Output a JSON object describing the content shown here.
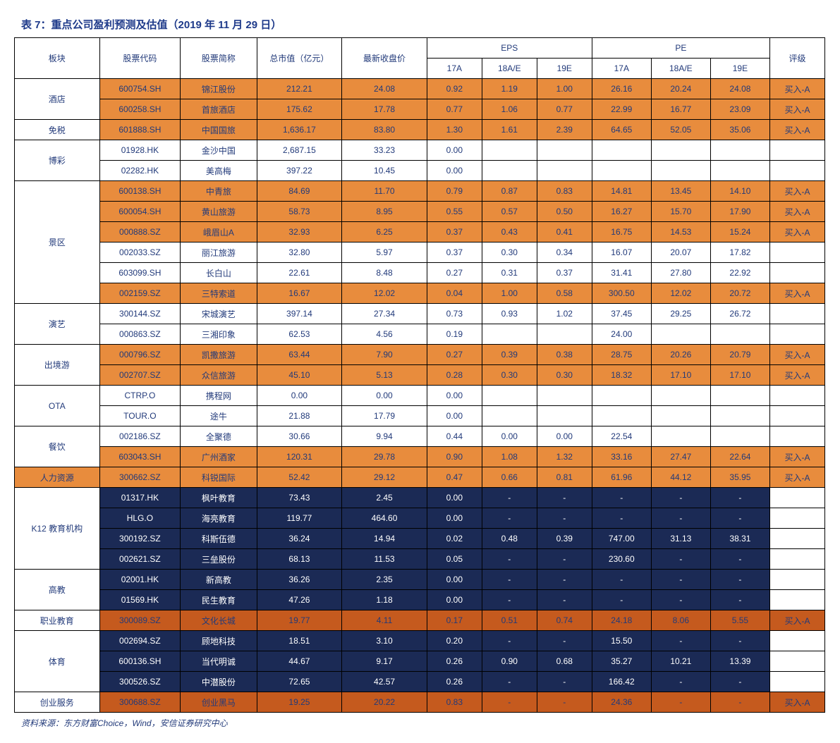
{
  "title": "表 7：重点公司盈利预测及估值（2019 年 11 月 29 日）",
  "footer": "资料来源：东方财富Choice，Wind，安信证券研究中心",
  "headers": {
    "sector": "板块",
    "code": "股票代码",
    "name": "股票简称",
    "mcap": "总市值（亿元）",
    "price": "最新收盘价",
    "eps": "EPS",
    "pe": "PE",
    "rating": "评级",
    "y17a": "17A",
    "y18ae": "18A/E",
    "y19e": "19E"
  },
  "ratings": {
    "buy": "买入-A"
  },
  "sectors": {
    "hotel": "酒店",
    "dutyfree": "免税",
    "gaming": "博彩",
    "scenic": "景区",
    "perf": "演艺",
    "outbound": "出境游",
    "ota": "OTA",
    "catering": "餐饮",
    "hr": "人力资源",
    "k12": "K12 教育机构",
    "higher": "高教",
    "voc": "职业教育",
    "sport": "体育",
    "startup": "创业服务"
  },
  "rows": {
    "r1": {
      "code": "600754.SH",
      "name": "锦江股份",
      "mcap": "212.21",
      "price": "24.08",
      "e17": "0.92",
      "e18": "1.19",
      "e19": "1.00",
      "p17": "26.16",
      "p18": "20.24",
      "p19": "24.08",
      "rating": "买入-A"
    },
    "r2": {
      "code": "600258.SH",
      "name": "首旅酒店",
      "mcap": "175.62",
      "price": "17.78",
      "e17": "0.77",
      "e18": "1.06",
      "e19": "0.77",
      "p17": "22.99",
      "p18": "16.77",
      "p19": "23.09",
      "rating": "买入-A"
    },
    "r3": {
      "code": "601888.SH",
      "name": "中国国旅",
      "mcap": "1,636.17",
      "price": "83.80",
      "e17": "1.30",
      "e18": "1.61",
      "e19": "2.39",
      "p17": "64.65",
      "p18": "52.05",
      "p19": "35.06",
      "rating": "买入-A"
    },
    "r4": {
      "code": "01928.HK",
      "name": "金沙中国",
      "mcap": "2,687.15",
      "price": "33.23",
      "e17": "0.00",
      "e18": "",
      "e19": "",
      "p17": "",
      "p18": "",
      "p19": "",
      "rating": ""
    },
    "r5": {
      "code": "02282.HK",
      "name": "美高梅",
      "mcap": "397.22",
      "price": "10.45",
      "e17": "0.00",
      "e18": "",
      "e19": "",
      "p17": "",
      "p18": "",
      "p19": "",
      "rating": ""
    },
    "r6": {
      "code": "600138.SH",
      "name": "中青旅",
      "mcap": "84.69",
      "price": "11.70",
      "e17": "0.79",
      "e18": "0.87",
      "e19": "0.83",
      "p17": "14.81",
      "p18": "13.45",
      "p19": "14.10",
      "rating": "买入-A"
    },
    "r7": {
      "code": "600054.SH",
      "name": "黄山旅游",
      "mcap": "58.73",
      "price": "8.95",
      "e17": "0.55",
      "e18": "0.57",
      "e19": "0.50",
      "p17": "16.27",
      "p18": "15.70",
      "p19": "17.90",
      "rating": "买入-A"
    },
    "r8": {
      "code": "000888.SZ",
      "name": "峨眉山A",
      "mcap": "32.93",
      "price": "6.25",
      "e17": "0.37",
      "e18": "0.43",
      "e19": "0.41",
      "p17": "16.75",
      "p18": "14.53",
      "p19": "15.24",
      "rating": "买入-A"
    },
    "r9": {
      "code": "002033.SZ",
      "name": "丽江旅游",
      "mcap": "32.80",
      "price": "5.97",
      "e17": "0.37",
      "e18": "0.30",
      "e19": "0.34",
      "p17": "16.07",
      "p18": "20.07",
      "p19": "17.82",
      "rating": ""
    },
    "r10": {
      "code": "603099.SH",
      "name": "长白山",
      "mcap": "22.61",
      "price": "8.48",
      "e17": "0.27",
      "e18": "0.31",
      "e19": "0.37",
      "p17": "31.41",
      "p18": "27.80",
      "p19": "22.92",
      "rating": ""
    },
    "r11": {
      "code": "002159.SZ",
      "name": "三特索道",
      "mcap": "16.67",
      "price": "12.02",
      "e17": "0.04",
      "e18": "1.00",
      "e19": "0.58",
      "p17": "300.50",
      "p18": "12.02",
      "p19": "20.72",
      "rating": "买入-A"
    },
    "r12": {
      "code": "300144.SZ",
      "name": "宋城演艺",
      "mcap": "397.14",
      "price": "27.34",
      "e17": "0.73",
      "e18": "0.93",
      "e19": "1.02",
      "p17": "37.45",
      "p18": "29.25",
      "p19": "26.72",
      "rating": ""
    },
    "r13": {
      "code": "000863.SZ",
      "name": "三湘印象",
      "mcap": "62.53",
      "price": "4.56",
      "e17": "0.19",
      "e18": "",
      "e19": "",
      "p17": "24.00",
      "p18": "",
      "p19": "",
      "rating": ""
    },
    "r14": {
      "code": "000796.SZ",
      "name": "凯撒旅游",
      "mcap": "63.44",
      "price": "7.90",
      "e17": "0.27",
      "e18": "0.39",
      "e19": "0.38",
      "p17": "28.75",
      "p18": "20.26",
      "p19": "20.79",
      "rating": "买入-A"
    },
    "r15": {
      "code": "002707.SZ",
      "name": "众信旅游",
      "mcap": "45.10",
      "price": "5.13",
      "e17": "0.28",
      "e18": "0.30",
      "e19": "0.30",
      "p17": "18.32",
      "p18": "17.10",
      "p19": "17.10",
      "rating": "买入-A"
    },
    "r16": {
      "code": "CTRP.O",
      "name": "携程网",
      "mcap": "0.00",
      "price": "0.00",
      "e17": "0.00",
      "e18": "",
      "e19": "",
      "p17": "",
      "p18": "",
      "p19": "",
      "rating": ""
    },
    "r17": {
      "code": "TOUR.O",
      "name": "途牛",
      "mcap": "21.88",
      "price": "17.79",
      "e17": "0.00",
      "e18": "",
      "e19": "",
      "p17": "",
      "p18": "",
      "p19": "",
      "rating": ""
    },
    "r18": {
      "code": "002186.SZ",
      "name": "全聚德",
      "mcap": "30.66",
      "price": "9.94",
      "e17": "0.44",
      "e18": "0.00",
      "e19": "0.00",
      "p17": "22.54",
      "p18": "",
      "p19": "",
      "rating": ""
    },
    "r19": {
      "code": "603043.SH",
      "name": "广州酒家",
      "mcap": "120.31",
      "price": "29.78",
      "e17": "0.90",
      "e18": "1.08",
      "e19": "1.32",
      "p17": "33.16",
      "p18": "27.47",
      "p19": "22.64",
      "rating": "买入-A"
    },
    "r20": {
      "code": "300662.SZ",
      "name": "科锐国际",
      "mcap": "52.42",
      "price": "29.12",
      "e17": "0.47",
      "e18": "0.66",
      "e19": "0.81",
      "p17": "61.96",
      "p18": "44.12",
      "p19": "35.95",
      "rating": "买入-A"
    },
    "r21": {
      "code": "01317.HK",
      "name": "枫叶教育",
      "mcap": "73.43",
      "price": "2.45",
      "e17": "0.00",
      "e18": "-",
      "e19": "-",
      "p17": "-",
      "p18": "-",
      "p19": "-",
      "rating": ""
    },
    "r22": {
      "code": "HLG.O",
      "name": "海亮教育",
      "mcap": "119.77",
      "price": "464.60",
      "e17": "0.00",
      "e18": "-",
      "e19": "-",
      "p17": "-",
      "p18": "-",
      "p19": "-",
      "rating": ""
    },
    "r23": {
      "code": "300192.SZ",
      "name": "科斯伍德",
      "mcap": "36.24",
      "price": "14.94",
      "e17": "0.02",
      "e18": "0.48",
      "e19": "0.39",
      "p17": "747.00",
      "p18": "31.13",
      "p19": "38.31",
      "rating": ""
    },
    "r24": {
      "code": "002621.SZ",
      "name": "三垒股份",
      "mcap": "68.13",
      "price": "11.53",
      "e17": "0.05",
      "e18": "-",
      "e19": "-",
      "p17": "230.60",
      "p18": "-",
      "p19": "-",
      "rating": ""
    },
    "r25": {
      "code": "02001.HK",
      "name": "新高教",
      "mcap": "36.26",
      "price": "2.35",
      "e17": "0.00",
      "e18": "-",
      "e19": "-",
      "p17": "-",
      "p18": "-",
      "p19": "-",
      "rating": ""
    },
    "r26": {
      "code": "01569.HK",
      "name": "民生教育",
      "mcap": "47.26",
      "price": "1.18",
      "e17": "0.00",
      "e18": "-",
      "e19": "-",
      "p17": "-",
      "p18": "-",
      "p19": "-",
      "rating": ""
    },
    "r27": {
      "code": "300089.SZ",
      "name": "文化长城",
      "mcap": "19.77",
      "price": "4.11",
      "e17": "0.17",
      "e18": "0.51",
      "e19": "0.74",
      "p17": "24.18",
      "p18": "8.06",
      "p19": "5.55",
      "rating": "买入-A"
    },
    "r28": {
      "code": "002694.SZ",
      "name": "顾地科技",
      "mcap": "18.51",
      "price": "3.10",
      "e17": "0.20",
      "e18": "-",
      "e19": "-",
      "p17": "15.50",
      "p18": "-",
      "p19": "-",
      "rating": ""
    },
    "r29": {
      "code": "600136.SH",
      "name": "当代明诚",
      "mcap": "44.67",
      "price": "9.17",
      "e17": "0.26",
      "e18": "0.90",
      "e19": "0.68",
      "p17": "35.27",
      "p18": "10.21",
      "p19": "13.39",
      "rating": ""
    },
    "r30": {
      "code": "300526.SZ",
      "name": "中潜股份",
      "mcap": "72.65",
      "price": "42.57",
      "e17": "0.26",
      "e18": "-",
      "e19": "-",
      "p17": "166.42",
      "p18": "-",
      "p19": "-",
      "rating": ""
    },
    "r31": {
      "code": "300688.SZ",
      "name": "创业黑马",
      "mcap": "19.25",
      "price": "20.22",
      "e17": "0.83",
      "e18": "-",
      "e19": "-",
      "p17": "24.36",
      "p18": "-",
      "p19": "-",
      "rating": "买入-A"
    }
  },
  "colors": {
    "header_text": "#1e3a8a",
    "highlight_bg": "#e88c3d",
    "dark_bg": "#1b2a55",
    "dark_hl": "#c55a1e"
  }
}
